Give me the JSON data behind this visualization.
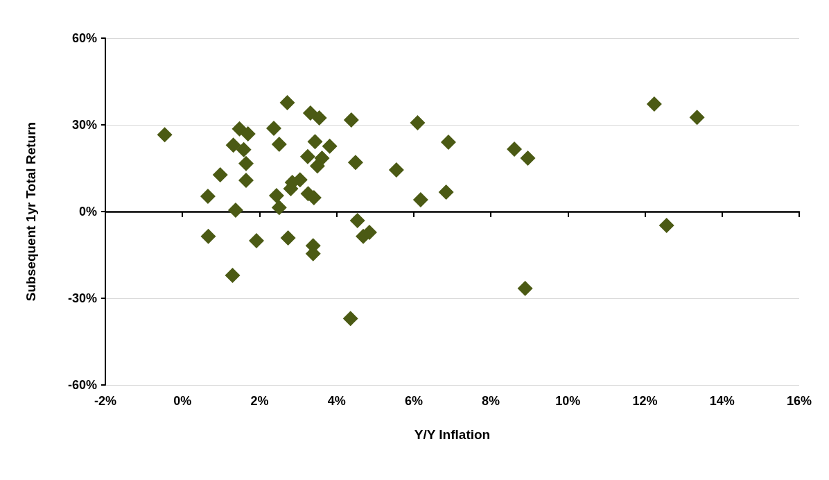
{
  "chart_data": {
    "type": "scatter",
    "xlabel": "Y/Y Inflation",
    "ylabel": "Subsequent 1yr Total Return",
    "x": [
      -0.46,
      0.66,
      0.67,
      0.98,
      1.32,
      1.48,
      1.59,
      1.65,
      1.7,
      1.65,
      1.38,
      1.3,
      1.92,
      2.37,
      2.51,
      2.44,
      2.51,
      2.72,
      2.74,
      3.32,
      3.55,
      3.25,
      3.44,
      3.82,
      3.62,
      3.5,
      3.05,
      2.85,
      2.81,
      3.26,
      3.41,
      3.39,
      3.39,
      4.38,
      4.49,
      4.54,
      4.69,
      4.85,
      4.36,
      5.55,
      6.1,
      6.18,
      6.84,
      6.9,
      8.61,
      8.96,
      8.89,
      12.24,
      12.56,
      13.35
    ],
    "values": [
      26.6,
      5.3,
      -8.6,
      12.7,
      23,
      28.6,
      21.4,
      16.6,
      26.9,
      10.8,
      0.5,
      -22.1,
      -10.1,
      28.8,
      23.3,
      5.5,
      1.4,
      37.7,
      -9.1,
      34.1,
      32.4,
      19,
      24.2,
      22.6,
      18.5,
      15.8,
      11,
      10.1,
      7.9,
      6.2,
      4.8,
      -11.8,
      -14.6,
      31.7,
      17,
      -3.1,
      -8.6,
      -7.2,
      -37,
      14.4,
      30.7,
      4.1,
      6.7,
      24,
      21.6,
      18.5,
      -26.6,
      37.2,
      -4.8,
      32.6
    ],
    "color": "#4b5a14",
    "marker": "diamond",
    "grid": "y",
    "xlim": [
      -2,
      16
    ],
    "xticks": [
      {
        "value": -2,
        "label": "-2%"
      },
      {
        "value": 0,
        "label": "0%"
      },
      {
        "value": 2,
        "label": "2%"
      },
      {
        "value": 4,
        "label": "4%"
      },
      {
        "value": 6,
        "label": "6%"
      },
      {
        "value": 8,
        "label": "8%"
      },
      {
        "value": 10,
        "label": "10%"
      },
      {
        "value": 12,
        "label": "12%"
      },
      {
        "value": 14,
        "label": "14%"
      },
      {
        "value": 16,
        "label": "16%"
      }
    ],
    "ylim": [
      -60,
      60
    ],
    "yticks": [
      {
        "value": -60,
        "label": "-60%"
      },
      {
        "value": -30,
        "label": "-30%"
      },
      {
        "value": 0,
        "label": "0%"
      },
      {
        "value": 30,
        "label": "30%"
      },
      {
        "value": 60,
        "label": "60%"
      }
    ]
  }
}
